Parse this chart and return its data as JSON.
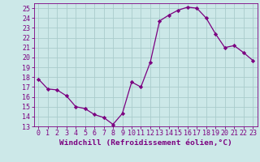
{
  "x": [
    0,
    1,
    2,
    3,
    4,
    5,
    6,
    7,
    8,
    9,
    10,
    11,
    12,
    13,
    14,
    15,
    16,
    17,
    18,
    19,
    20,
    21,
    22,
    23
  ],
  "y": [
    17.8,
    16.8,
    16.7,
    16.1,
    15.0,
    14.8,
    14.2,
    13.9,
    13.2,
    14.3,
    17.5,
    17.0,
    19.5,
    23.7,
    24.3,
    24.8,
    25.1,
    25.0,
    24.0,
    22.4,
    21.0,
    21.2,
    20.5,
    19.7
  ],
  "line_color": "#7b0080",
  "marker": "D",
  "marker_size": 2.2,
  "bg_color": "#cce8e8",
  "grid_color": "#aacccc",
  "xlabel": "Windchill (Refroidissement éolien,°C)",
  "ylim": [
    13,
    25.5
  ],
  "xlim": [
    -0.5,
    23.5
  ],
  "yticks": [
    13,
    14,
    15,
    16,
    17,
    18,
    19,
    20,
    21,
    22,
    23,
    24,
    25
  ],
  "xticks": [
    0,
    1,
    2,
    3,
    4,
    5,
    6,
    7,
    8,
    9,
    10,
    11,
    12,
    13,
    14,
    15,
    16,
    17,
    18,
    19,
    20,
    21,
    22,
    23
  ],
  "font_color": "#7b0080",
  "tick_fontsize": 6.0,
  "xlabel_fontsize": 6.8,
  "linewidth": 0.9
}
